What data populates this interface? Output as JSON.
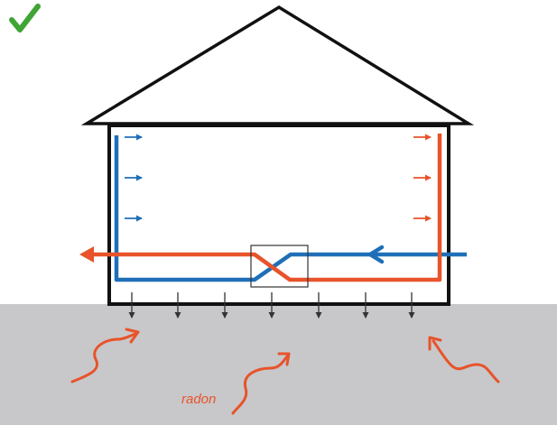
{
  "diagram": {
    "radon_label": "radon",
    "status_icon": "checkmark-icon",
    "colors": {
      "check": "#3fa535",
      "supply_air": "#1f6fb8",
      "exhaust_air": "#e8532a",
      "radon": "#e8532a",
      "ground": "#c8c8ca",
      "house_outline": "#111111",
      "pressure_arrows": "#333333"
    }
  }
}
